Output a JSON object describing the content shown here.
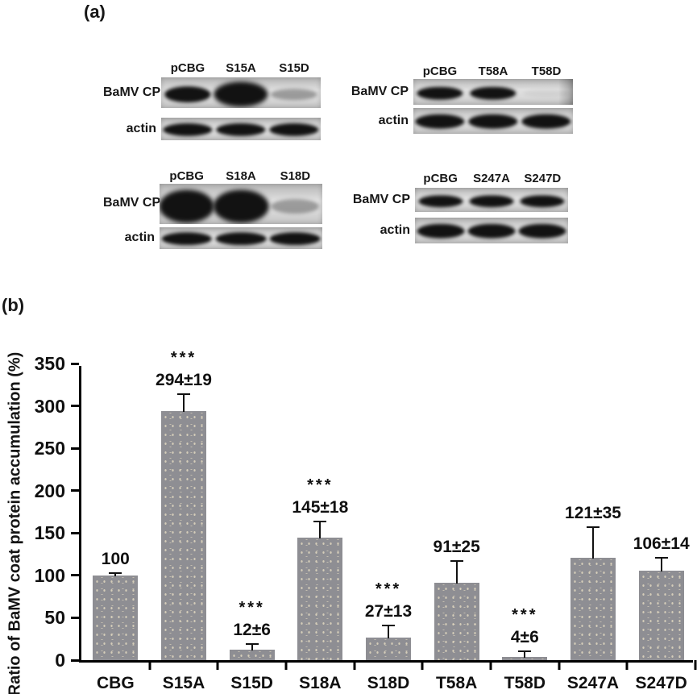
{
  "panel_a": {
    "label": "(a)",
    "blots": [
      {
        "name": "S15",
        "lanes": [
          "pCBG",
          "S15A",
          "S15D"
        ],
        "rows": [
          {
            "label": "BaMV CP",
            "bands": [
              "strong",
              "xstrong",
              "faint"
            ]
          },
          {
            "label": "actin",
            "bands": [
              "strong",
              "strong",
              "strong"
            ]
          }
        ]
      },
      {
        "name": "T58",
        "lanes": [
          "pCBG",
          "T58A",
          "T58D"
        ],
        "rows": [
          {
            "label": "BaMV CP",
            "bands": [
              "strong",
              "strong",
              "none"
            ]
          },
          {
            "label": "actin",
            "bands": [
              "strong",
              "strong",
              "strong"
            ]
          }
        ]
      },
      {
        "name": "S18",
        "lanes": [
          "pCBG",
          "S18A",
          "S18D"
        ],
        "rows": [
          {
            "label": "BaMV CP",
            "bands": [
              "xstrong",
              "xstrong",
              "faint"
            ]
          },
          {
            "label": "actin",
            "bands": [
              "strong",
              "strong",
              "strong"
            ]
          }
        ]
      },
      {
        "name": "S247",
        "lanes": [
          "pCBG",
          "S247A",
          "S247D"
        ],
        "rows": [
          {
            "label": "BaMV CP",
            "bands": [
              "strong",
              "strong",
              "strong"
            ]
          },
          {
            "label": "actin",
            "bands": [
              "strong",
              "strong",
              "strong"
            ]
          }
        ]
      }
    ]
  },
  "panel_b": {
    "label": "(b)"
  },
  "chart_data": {
    "type": "bar",
    "categories": [
      "CBG",
      "S15A",
      "S15D",
      "S18A",
      "S18D",
      "T58A",
      "T58D",
      "S247A",
      "S247D"
    ],
    "values": [
      100,
      294,
      12,
      145,
      27,
      91,
      4,
      121,
      106
    ],
    "errors": [
      2,
      19,
      6,
      18,
      13,
      25,
      6,
      35,
      14
    ],
    "bar_labels": [
      "100",
      "294±19",
      "12±6",
      "145±18",
      "27±13",
      "91±25",
      "4±6",
      "121±35",
      "106±14"
    ],
    "significance": [
      "",
      "***",
      "***",
      "***",
      "***",
      "",
      "***",
      "",
      ""
    ],
    "title": "",
    "xlabel": "",
    "ylabel": "Ratio of BaMV coat protein accumulation (%)",
    "ylim": [
      0,
      350
    ],
    "yticks": [
      0,
      50,
      100,
      150,
      200,
      250,
      300,
      350
    ],
    "grid": false,
    "legend": false,
    "bar_color": "#8e8e93",
    "error_color": "#111111"
  }
}
